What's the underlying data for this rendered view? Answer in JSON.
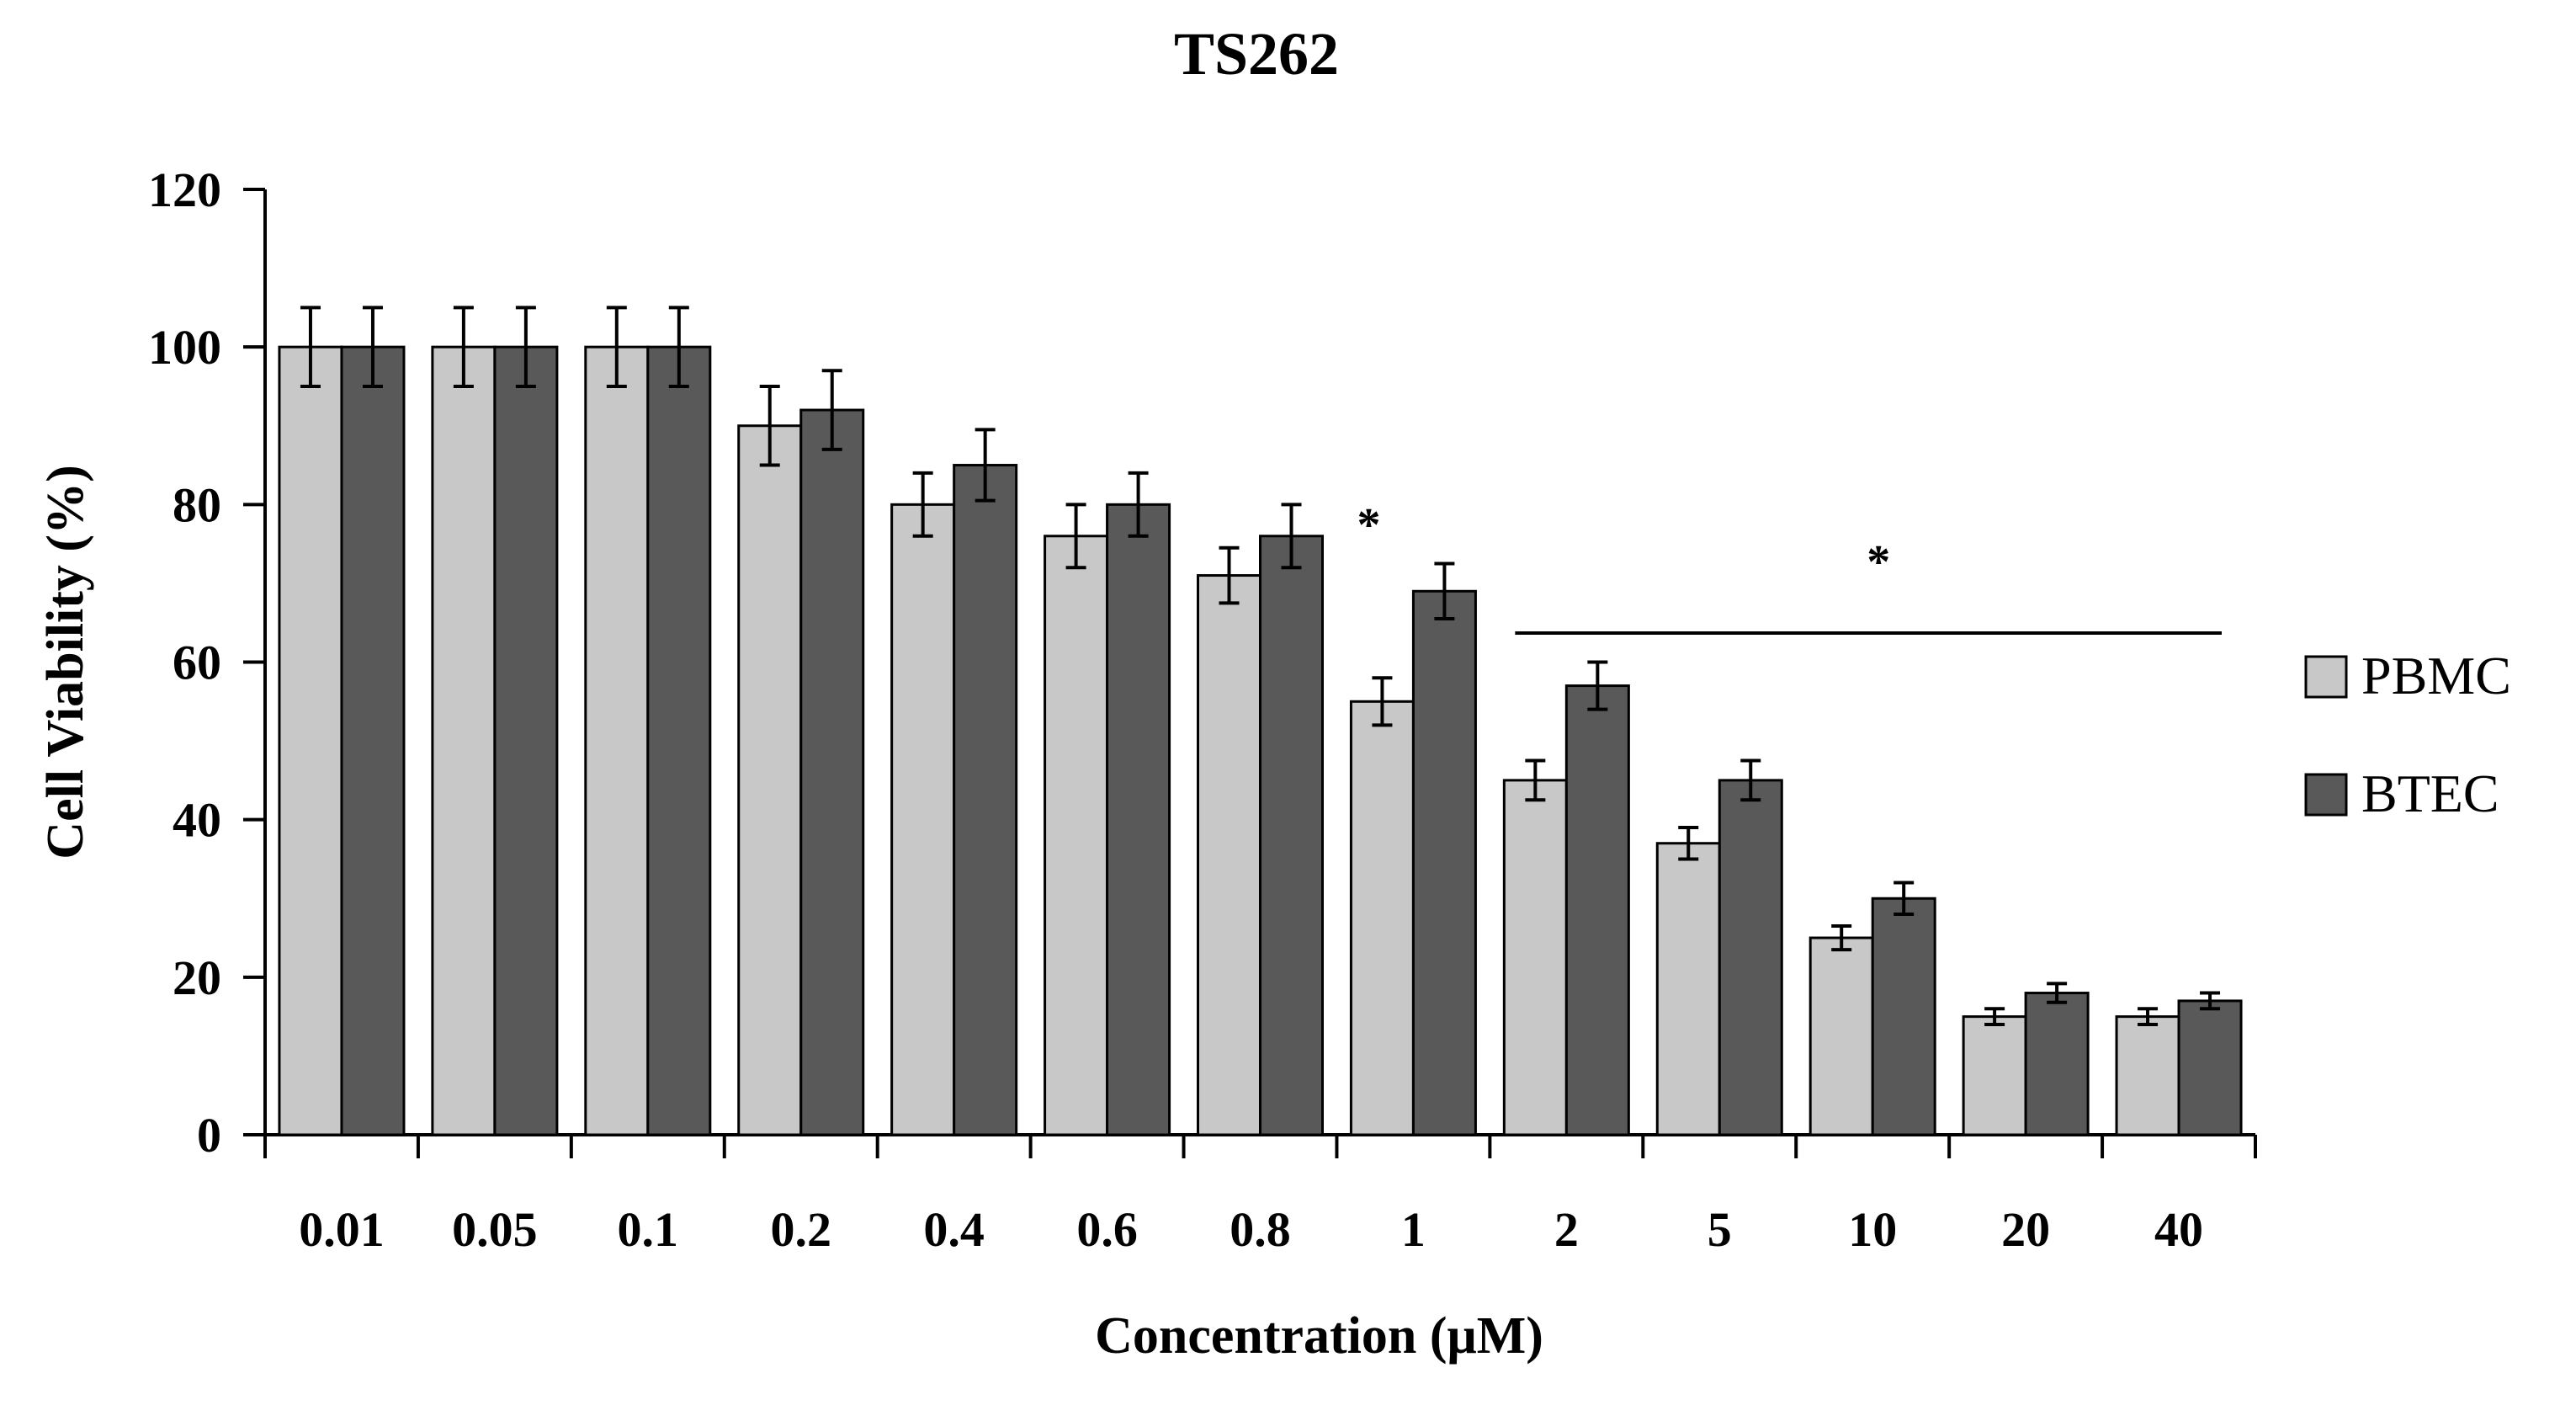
{
  "chart_data": {
    "type": "bar",
    "title": "TS262",
    "xlabel": "Concentration (μM)",
    "ylabel": "Cell Viability (%)",
    "ylim": [
      0,
      120
    ],
    "yticks": [
      0,
      20,
      40,
      60,
      80,
      100,
      120
    ],
    "categories": [
      "0.01",
      "0.05",
      "0.1",
      "0.2",
      "0.4",
      "0.6",
      "0.8",
      "1",
      "2",
      "5",
      "10",
      "20",
      "40"
    ],
    "series": [
      {
        "name": "PBMC",
        "color": "#c8c8c8",
        "values": [
          100,
          100,
          100,
          90,
          80,
          76,
          71,
          55,
          45,
          37,
          25,
          15,
          15
        ],
        "errors": [
          5,
          5,
          5,
          5,
          4,
          4,
          3.5,
          3,
          2.5,
          2,
          1.5,
          1,
          1
        ]
      },
      {
        "name": "BTEC",
        "color": "#595959",
        "values": [
          100,
          100,
          100,
          92,
          85,
          80,
          76,
          69,
          57,
          45,
          30,
          18,
          17
        ],
        "errors": [
          5,
          5,
          5,
          5,
          4.5,
          4,
          4,
          3.5,
          3,
          2.5,
          2,
          1.2,
          1
        ]
      }
    ],
    "annotations": [
      {
        "text": "*",
        "category": "1",
        "type": "star"
      },
      {
        "text": "*",
        "from_category": "2",
        "to_category": "40",
        "type": "bracket"
      }
    ],
    "legend": "right",
    "grid": false
  }
}
